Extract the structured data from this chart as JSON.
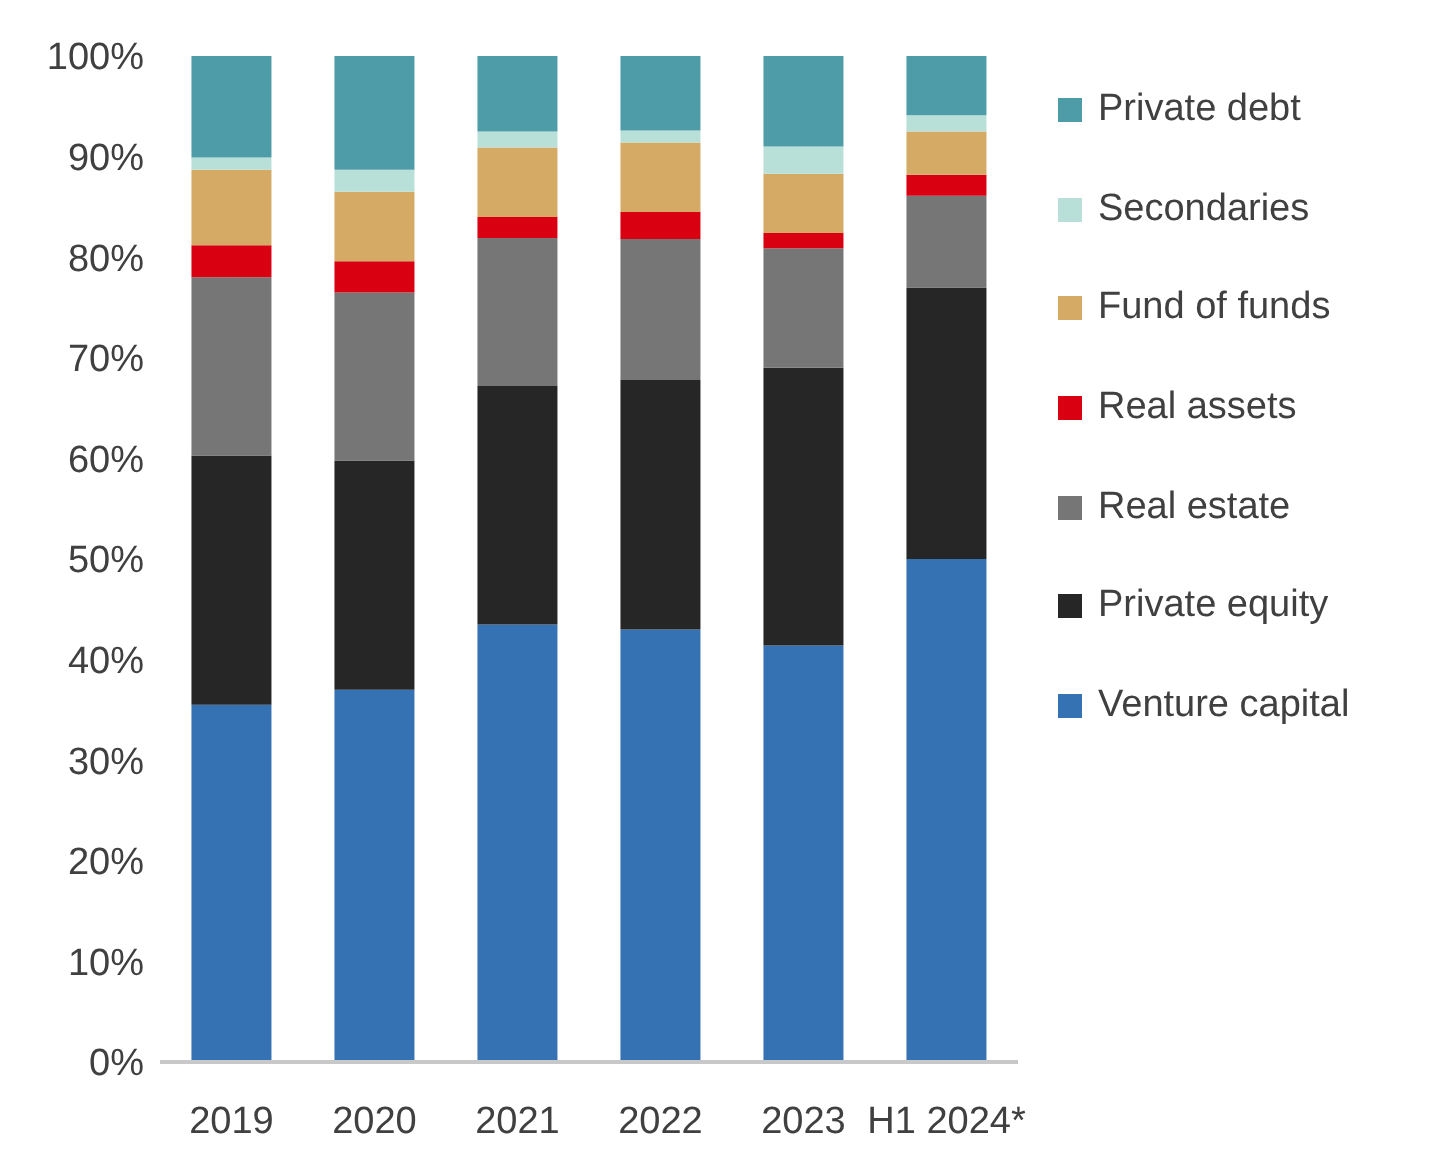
{
  "chart_data": {
    "type": "bar",
    "stacked": true,
    "categories": [
      "2019",
      "2020",
      "2021",
      "2022",
      "2023",
      "H1 2024*"
    ],
    "ylim": [
      0,
      100
    ],
    "yticks": [
      {
        "value": 0,
        "label": "0%"
      },
      {
        "value": 10,
        "label": "10%"
      },
      {
        "value": 20,
        "label": "20%"
      },
      {
        "value": 30,
        "label": "30%"
      },
      {
        "value": 40,
        "label": "40%"
      },
      {
        "value": 50,
        "label": "50%"
      },
      {
        "value": 60,
        "label": "60%"
      },
      {
        "value": 70,
        "label": "70%"
      },
      {
        "value": 80,
        "label": "80%"
      },
      {
        "value": 90,
        "label": "90%"
      },
      {
        "value": 100,
        "label": "100%"
      }
    ],
    "grid": false,
    "legend": "right",
    "series": [
      {
        "name": "Venture capital",
        "color": "#3572b4",
        "values": [
          35.5,
          37,
          43.5,
          43,
          41.4,
          50
        ]
      },
      {
        "name": "Private equity",
        "color": "#262626",
        "values": [
          24.8,
          22.8,
          23.7,
          24.8,
          27.6,
          27
        ]
      },
      {
        "name": "Real estate",
        "color": "#767676",
        "values": [
          17.7,
          16.7,
          14.7,
          14,
          11.9,
          9.1
        ]
      },
      {
        "name": "Real assets",
        "color": "#d90012",
        "values": [
          3.2,
          3.1,
          2.1,
          2.7,
          1.5,
          2.1
        ]
      },
      {
        "name": "Fund of funds",
        "color": "#d4aa64",
        "values": [
          7.5,
          6.9,
          6.9,
          6.9,
          5.9,
          4.3
        ]
      },
      {
        "name": "Secondaries",
        "color": "#b8e0d8",
        "values": [
          1.2,
          2.2,
          1.6,
          1.2,
          2.7,
          1.6
        ]
      },
      {
        "name": "Private debt",
        "color": "#4e9ca8",
        "values": [
          10.1,
          11.3,
          7.5,
          7.4,
          9,
          5.9
        ]
      }
    ]
  }
}
